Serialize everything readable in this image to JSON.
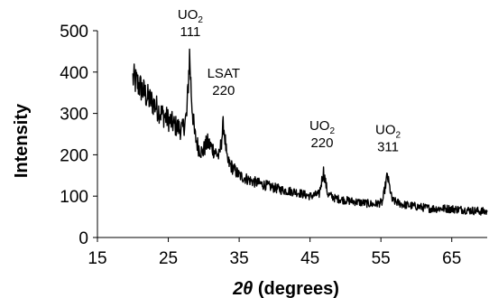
{
  "chart_data": {
    "type": "line",
    "title": "",
    "xlabel_symbol": "2θ",
    "xlabel_unit": " (degrees)",
    "ylabel": "Intensity",
    "xlim": [
      15,
      70
    ],
    "ylim": [
      0,
      500
    ],
    "xticks": [
      15,
      25,
      35,
      45,
      55,
      65
    ],
    "yticks": [
      0,
      100,
      200,
      300,
      400,
      500
    ],
    "grid": false,
    "series": [
      {
        "line_color": "#000000",
        "x": [
          20,
          21,
          22,
          23,
          24,
          25,
          26,
          27,
          27.6,
          28.0,
          28.3,
          28.7,
          29.2,
          29.8,
          30.5,
          31.5,
          32.2,
          32.8,
          33.3,
          34,
          35,
          37,
          39,
          41,
          43,
          45,
          46.3,
          46.9,
          47.5,
          48.5,
          50,
          52,
          54,
          55.2,
          55.9,
          56.6,
          58,
          60,
          62,
          64,
          66,
          68,
          70
        ],
        "y": [
          385,
          365,
          340,
          322,
          300,
          285,
          270,
          260,
          295,
          440,
          330,
          250,
          220,
          205,
          230,
          210,
          195,
          275,
          185,
          170,
          150,
          135,
          125,
          115,
          110,
          100,
          105,
          160,
          105,
          95,
          90,
          85,
          80,
          85,
          150,
          90,
          80,
          75,
          70,
          70,
          68,
          65,
          62
        ]
      }
    ],
    "annotations": [
      {
        "label": "UO",
        "sub": "2",
        "line2": "111",
        "x": 28.1,
        "y_top": 528
      },
      {
        "label": "LSAT",
        "sub": "",
        "line2": "220",
        "x": 32.8,
        "y_top": 387
      },
      {
        "label": "UO",
        "sub": "2",
        "line2": "220",
        "x": 46.7,
        "y_top": 260
      },
      {
        "label": "UO",
        "sub": "2",
        "line2": "311",
        "x": 56.0,
        "y_top": 250
      }
    ]
  }
}
